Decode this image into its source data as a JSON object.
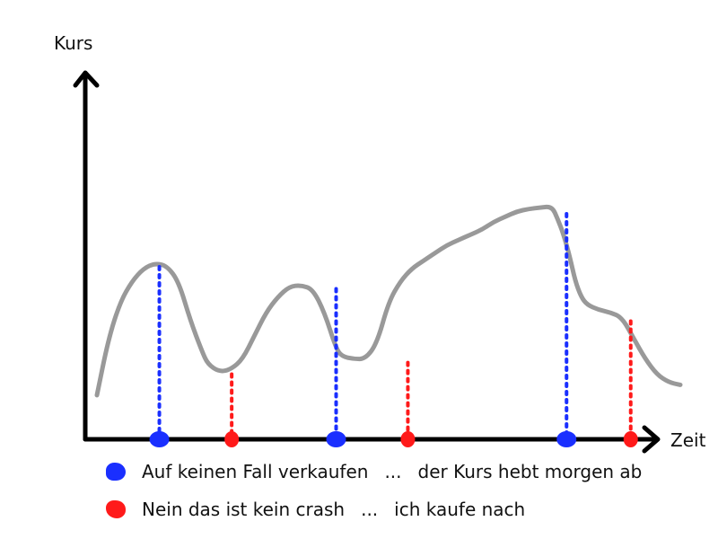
{
  "chart_data": {
    "type": "line",
    "title": "",
    "xlabel": "Zeit",
    "ylabel": "Kurs",
    "xlim": [
      0,
      100
    ],
    "ylim": [
      0,
      100
    ],
    "grid": false,
    "series": [
      {
        "color": "#999999",
        "x": [
          0,
          2,
          4,
          6,
          8,
          10,
          12,
          14,
          16,
          18,
          19,
          21,
          23,
          25,
          27,
          29,
          31,
          33,
          35,
          37,
          39,
          41,
          42,
          44,
          46,
          48,
          50,
          52,
          54,
          56,
          58,
          60,
          62,
          64,
          66,
          68,
          70,
          72,
          74,
          76,
          78,
          79,
          80,
          81,
          82,
          83,
          84,
          86,
          88,
          90,
          92,
          94,
          96,
          98,
          100
        ],
        "values": [
          16,
          38,
          52,
          60,
          65,
          67,
          66,
          60,
          45,
          33,
          28,
          25,
          26,
          30,
          39,
          48,
          54,
          58,
          58.5,
          57,
          48,
          34,
          31,
          30,
          30,
          36,
          52,
          60,
          65,
          68,
          71,
          74,
          76,
          78,
          80,
          83,
          85,
          87,
          88,
          88.5,
          89,
          84,
          78,
          70,
          60,
          54,
          51,
          49,
          48,
          46,
          38,
          30,
          24,
          21,
          20
        ]
      }
    ],
    "markers": [
      {
        "x": 10.7,
        "y": 67,
        "kind": "blue"
      },
      {
        "x": 23.1,
        "y": 25.5,
        "kind": "red"
      },
      {
        "x": 41,
        "y": 58.5,
        "kind": "blue"
      },
      {
        "x": 53.3,
        "y": 30,
        "kind": "red"
      },
      {
        "x": 80.5,
        "y": 87.5,
        "kind": "blue"
      },
      {
        "x": 91.5,
        "y": 46,
        "kind": "red"
      }
    ]
  },
  "legend": {
    "items": [
      {
        "kind": "blue",
        "color": "#1a2fff",
        "label": "Auf keinen Fall verkaufen",
        "dots": "...",
        "comment": "der Kurs hebt morgen ab"
      },
      {
        "kind": "red",
        "color": "#ff1a1a",
        "label": "Nein das ist kein crash",
        "dots": "...",
        "comment": "ich kaufe nach"
      }
    ]
  }
}
